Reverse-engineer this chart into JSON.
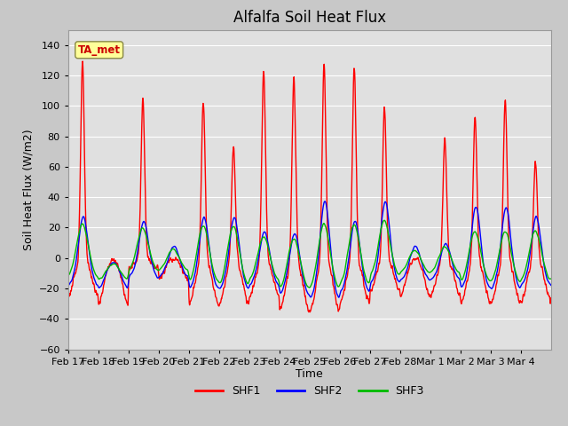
{
  "title": "Alfalfa Soil Heat Flux",
  "xlabel": "Time",
  "ylabel": "Soil Heat Flux (W/m2)",
  "ylim": [
    -60,
    150
  ],
  "yticks": [
    -60,
    -40,
    -20,
    0,
    20,
    40,
    60,
    80,
    100,
    120,
    140
  ],
  "colors": {
    "SHF1": "#FF0000",
    "SHF2": "#0000FF",
    "SHF3": "#00BB00"
  },
  "annotation_text": "TA_met",
  "annotation_color": "#CC0000",
  "annotation_bg": "#FFFF99",
  "fig_bg": "#C8C8C8",
  "plot_bg": "#E0E0E0",
  "grid_color": "#FFFFFF",
  "xtick_labels": [
    "Feb 17",
    "Feb 18",
    "Feb 19",
    "Feb 20",
    "Feb 21",
    "Feb 22",
    "Feb 23",
    "Feb 24",
    "Feb 25",
    "Feb 26",
    "Feb 27",
    "Feb 28",
    "Mar 1",
    "Mar 2",
    "Mar 3",
    "Mar 4"
  ],
  "n_days": 16,
  "pts_per_day": 96,
  "shf1_peaks": [
    130,
    0,
    106,
    0,
    105,
    75,
    125,
    120,
    130,
    128,
    101,
    0,
    80,
    94,
    107,
    65
  ],
  "shf1_mins": [
    -35,
    -43,
    -10,
    -20,
    -43,
    -43,
    -35,
    -50,
    -50,
    -42,
    -30,
    -35,
    -35,
    -42,
    -42,
    -40
  ],
  "shf2_peaks": [
    30,
    0,
    26,
    10,
    30,
    30,
    20,
    20,
    42,
    28,
    40,
    10,
    12,
    37,
    37,
    30
  ],
  "shf2_mins": [
    -22,
    -25,
    -15,
    -15,
    -25,
    -25,
    -22,
    -30,
    -33,
    -28,
    -20,
    -18,
    -18,
    -25,
    -25,
    -22
  ],
  "shf3_peaks": [
    26,
    0,
    22,
    8,
    26,
    26,
    18,
    18,
    28,
    27,
    28,
    8,
    10,
    22,
    22,
    22
  ],
  "shf3_mins": [
    -15,
    -18,
    -10,
    -10,
    -20,
    -22,
    -18,
    -25,
    -25,
    -22,
    -15,
    -12,
    -12,
    -20,
    -20,
    -18
  ],
  "title_fontsize": 12,
  "axis_fontsize": 9,
  "tick_fontsize": 8,
  "linewidth": 1.0
}
